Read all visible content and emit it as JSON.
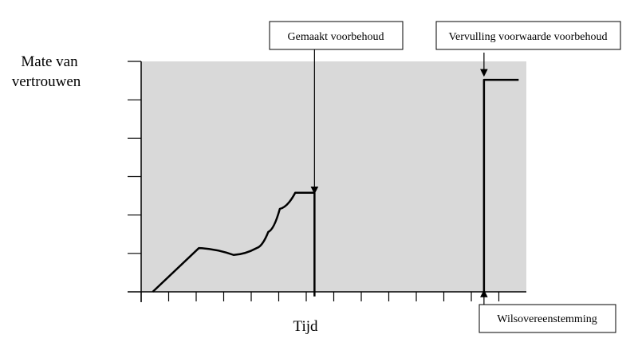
{
  "chart_data": {
    "type": "line",
    "ylabel_lines": [
      "Mate van",
      "vertrouwen"
    ],
    "xlabel": "Tijd",
    "grid": false,
    "y_ticks": 6,
    "x_ticks": 14,
    "series": [
      {
        "points": [
          [
            0.03,
            0.0
          ],
          [
            0.15,
            0.19
          ],
          [
            0.24,
            0.16
          ],
          [
            0.3,
            0.19
          ],
          [
            0.33,
            0.26
          ],
          [
            0.36,
            0.36
          ],
          [
            0.4,
            0.43
          ],
          [
            0.44,
            0.43
          ],
          [
            0.45,
            0.43
          ],
          [
            0.45,
            -0.02
          ]
        ]
      },
      {
        "points": [
          [
            0.89,
            -0.02
          ],
          [
            0.89,
            0.92
          ],
          [
            0.98,
            0.92
          ]
        ]
      }
    ],
    "annotations": [
      {
        "id": "gemaakt",
        "text": "Gemaakt voorbehoud",
        "target_x": 0.45,
        "target_y": 0.44,
        "arrow_to": "down"
      },
      {
        "id": "vervulling",
        "text": "Vervulling voorwaarde voorbehoud",
        "target_x": 0.89,
        "target_y": 0.95,
        "arrow_to": "down"
      },
      {
        "id": "wilsovereenstemming",
        "text": "Wilsovereenstemming",
        "target_x": 0.89,
        "target_y": 0.0,
        "arrow_to": "up"
      }
    ],
    "colors": {
      "plot_background": "#d9d9d9",
      "line": "#000000"
    }
  }
}
